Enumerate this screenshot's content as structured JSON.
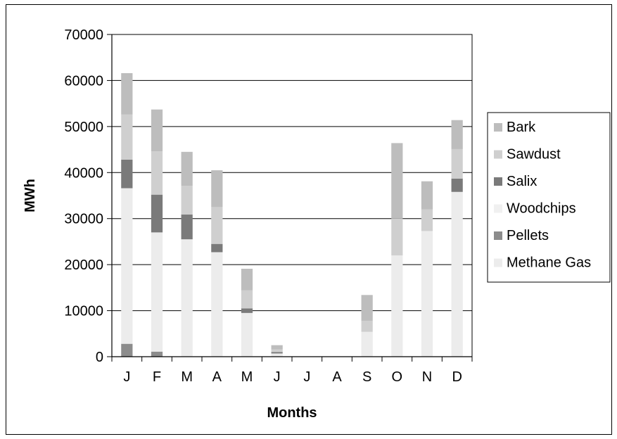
{
  "chart_data": {
    "type": "bar",
    "stacked": true,
    "categories": [
      "J",
      "F",
      "M",
      "A",
      "M",
      "J",
      "J",
      "A",
      "S",
      "O",
      "N",
      "D"
    ],
    "xlabel": "Months",
    "ylabel": "MWh",
    "ylim": [
      0,
      70000
    ],
    "yticks": [
      0,
      10000,
      20000,
      30000,
      40000,
      50000,
      60000,
      70000
    ],
    "grid": "horizontal",
    "legend_position": "right",
    "series": [
      {
        "name": "Pellets",
        "color": "#8c8c8c",
        "values": [
          2800,
          1100,
          0,
          0,
          0,
          0,
          0,
          0,
          0,
          0,
          0,
          0
        ]
      },
      {
        "name": "Methane Gas",
        "color": "#ececec",
        "values": [
          33800,
          25900,
          25500,
          22700,
          9500,
          700,
          0,
          0,
          5400,
          22000,
          27300,
          35800
        ]
      },
      {
        "name": "Salix",
        "color": "#7a7a7a",
        "values": [
          6200,
          8200,
          5400,
          1800,
          1000,
          300,
          0,
          0,
          0,
          0,
          0,
          2900
        ]
      },
      {
        "name": "Woodchips",
        "color": "#f0f0f0",
        "values": [
          0,
          0,
          0,
          0,
          0,
          0,
          0,
          0,
          0,
          0,
          0,
          0
        ]
      },
      {
        "name": "Sawdust",
        "color": "#cfcfcf",
        "values": [
          9800,
          9400,
          6200,
          8000,
          3900,
          600,
          0,
          0,
          2400,
          8000,
          4700,
          6400
        ]
      },
      {
        "name": "Bark",
        "color": "#bdbdbd",
        "values": [
          9000,
          9100,
          7400,
          8000,
          4700,
          900,
          0,
          0,
          5600,
          16400,
          6100,
          6300
        ]
      }
    ],
    "legend_order": [
      "Bark",
      "Sawdust",
      "Salix",
      "Woodchips",
      "Pellets",
      "Methane Gas"
    ]
  }
}
